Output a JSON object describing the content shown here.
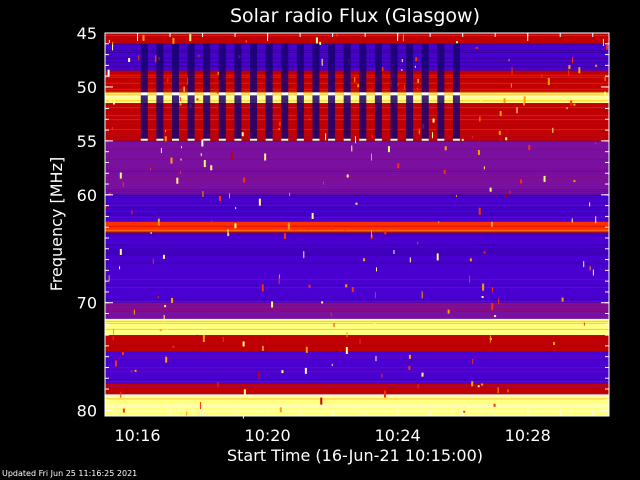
{
  "chart_data": {
    "type": "heatmap",
    "title": "Solar radio Flux (Glasgow)",
    "xlabel": "Start Time (16-Jun-21 10:15:00)",
    "ylabel": "Frequency [MHz]",
    "x_range_minutes": [
      0,
      15.5
    ],
    "ylim": [
      45,
      80.5
    ],
    "x_ticks": [
      {
        "label": "10:16",
        "minutes": 1
      },
      {
        "label": "10:20",
        "minutes": 5
      },
      {
        "label": "10:24",
        "minutes": 9
      },
      {
        "label": "10:28",
        "minutes": 13
      }
    ],
    "y_ticks": [
      {
        "label": "45",
        "mhz": 45
      },
      {
        "label": "50",
        "mhz": 50
      },
      {
        "label": "55",
        "mhz": 55
      },
      {
        "label": "60",
        "mhz": 60
      },
      {
        "label": "70",
        "mhz": 70
      },
      {
        "label": "80",
        "mhz": 80
      }
    ],
    "colormap": [
      "#000000",
      "#2a0080",
      "#4a00d0",
      "#7a10a0",
      "#c00000",
      "#ff3000",
      "#ffa000",
      "#ffff80",
      "#ffffff"
    ],
    "bands": [
      {
        "from_mhz": 45,
        "to_mhz": 46,
        "level": 0.55
      },
      {
        "from_mhz": 46,
        "to_mhz": 48.5,
        "level": 0.2
      },
      {
        "from_mhz": 48.5,
        "to_mhz": 50.5,
        "level": 0.55
      },
      {
        "from_mhz": 50.5,
        "to_mhz": 51.5,
        "level": 0.85
      },
      {
        "from_mhz": 51.5,
        "to_mhz": 55,
        "level": 0.5
      },
      {
        "from_mhz": 55,
        "to_mhz": 58,
        "level": 0.38
      },
      {
        "from_mhz": 58,
        "to_mhz": 60,
        "level": 0.33
      },
      {
        "from_mhz": 60,
        "to_mhz": 62.5,
        "level": 0.2
      },
      {
        "from_mhz": 62.5,
        "to_mhz": 63.5,
        "level": 0.6
      },
      {
        "from_mhz": 63.5,
        "to_mhz": 66.5,
        "level": 0.22
      },
      {
        "from_mhz": 66.5,
        "to_mhz": 70,
        "level": 0.3
      },
      {
        "from_mhz": 70,
        "to_mhz": 71.5,
        "level": 0.4
      },
      {
        "from_mhz": 71.5,
        "to_mhz": 73,
        "level": 0.9
      },
      {
        "from_mhz": 73,
        "to_mhz": 74.5,
        "level": 0.45
      },
      {
        "from_mhz": 74.5,
        "to_mhz": 77.5,
        "level": 0.22
      },
      {
        "from_mhz": 77.5,
        "to_mhz": 78.5,
        "level": 0.45
      },
      {
        "from_mhz": 78.5,
        "to_mhz": 80.5,
        "level": 0.92
      }
    ],
    "interference_pulses": {
      "from_mhz": 46,
      "to_mhz": 55,
      "start_minutes": 1.1,
      "end_minutes": 10.9,
      "period_minutes": 0.48
    }
  },
  "footer": {
    "updated": "Updated Fri Jun 25 11:16:25 2021"
  }
}
